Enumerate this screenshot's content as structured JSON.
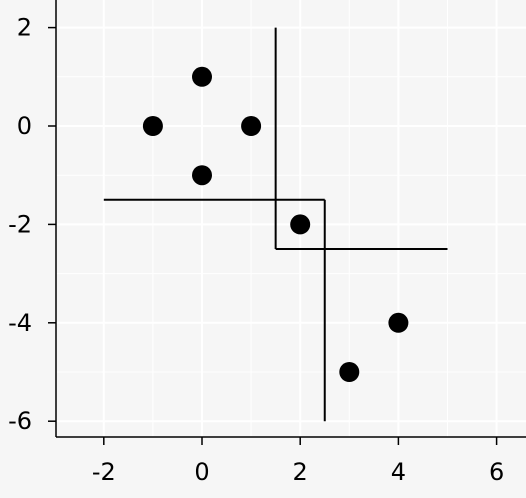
{
  "chart_data": {
    "type": "scatter",
    "title": "",
    "xlabel": "",
    "ylabel": "",
    "xlim": [
      -3,
      6.5
    ],
    "ylim": [
      -6.3,
      2.5
    ],
    "x_ticks": [
      -2,
      0,
      2,
      4,
      6
    ],
    "y_ticks": [
      2,
      0,
      -2,
      -4,
      -6
    ],
    "x_tick_labels": [
      "-2",
      "0",
      "2",
      "4",
      "6"
    ],
    "y_tick_labels": [
      "2",
      "0",
      "-2",
      "-4",
      "-6"
    ],
    "grid": true,
    "legend": "none",
    "points": [
      {
        "x": 0,
        "y": 1
      },
      {
        "x": -1,
        "y": 0
      },
      {
        "x": 1,
        "y": 0
      },
      {
        "x": 0,
        "y": -1
      },
      {
        "x": 2,
        "y": -2
      },
      {
        "x": 4,
        "y": -4
      },
      {
        "x": 3,
        "y": -5
      }
    ],
    "segments": [
      {
        "x1": 1.5,
        "y1": 2,
        "x2": 1.5,
        "y2": -2.5
      },
      {
        "x1": -2,
        "y1": -1.5,
        "x2": 2.5,
        "y2": -1.5
      },
      {
        "x1": 1.5,
        "y1": -2.5,
        "x2": 5,
        "y2": -2.5
      },
      {
        "x1": 2.5,
        "y1": -1.5,
        "x2": 2.5,
        "y2": -6
      }
    ],
    "colors": {
      "background": "#f6f6f6",
      "grid": "#ffffff",
      "marker": "#000000",
      "line": "#000000",
      "axis": "#000000"
    }
  }
}
